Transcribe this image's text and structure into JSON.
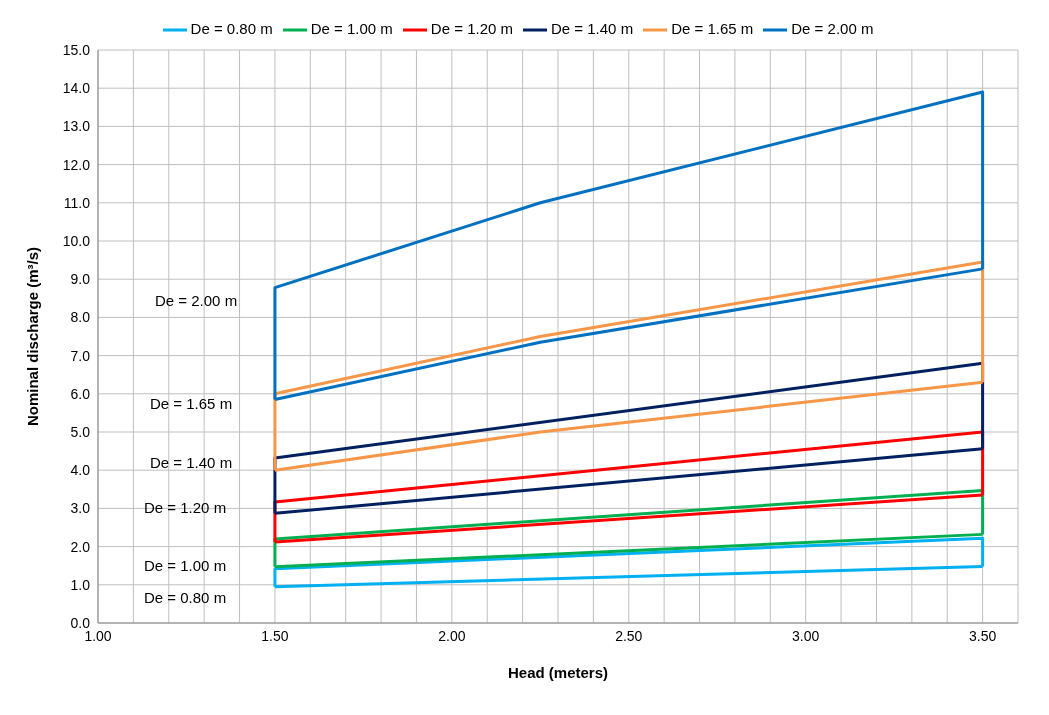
{
  "chart_data": {
    "type": "line",
    "xlabel": "Head (meters)",
    "ylabel": "Nominal discharge (m³/s)",
    "xlim": [
      1.0,
      3.6
    ],
    "xticks": [
      {
        "value": 1.0,
        "label": "1.00"
      },
      {
        "value": 1.1,
        "label": null
      },
      {
        "value": 1.2,
        "label": null
      },
      {
        "value": 1.3,
        "label": null
      },
      {
        "value": 1.4,
        "label": null
      },
      {
        "value": 1.5,
        "label": "1.50"
      },
      {
        "value": 1.6,
        "label": null
      },
      {
        "value": 1.7,
        "label": null
      },
      {
        "value": 1.8,
        "label": null
      },
      {
        "value": 1.9,
        "label": null
      },
      {
        "value": 2.0,
        "label": "2.00"
      },
      {
        "value": 2.1,
        "label": null
      },
      {
        "value": 2.2,
        "label": null
      },
      {
        "value": 2.3,
        "label": null
      },
      {
        "value": 2.4,
        "label": null
      },
      {
        "value": 2.5,
        "label": "2.50"
      },
      {
        "value": 2.6,
        "label": null
      },
      {
        "value": 2.7,
        "label": null
      },
      {
        "value": 2.8,
        "label": null
      },
      {
        "value": 2.9,
        "label": null
      },
      {
        "value": 3.0,
        "label": "3.00"
      },
      {
        "value": 3.1,
        "label": null
      },
      {
        "value": 3.2,
        "label": null
      },
      {
        "value": 3.3,
        "label": null
      },
      {
        "value": 3.4,
        "label": null
      },
      {
        "value": 3.5,
        "label": "3.50"
      },
      {
        "value": 3.6,
        "label": null
      }
    ],
    "ylim": [
      0,
      15
    ],
    "yticks": [
      {
        "value": 0,
        "label": "0.0"
      },
      {
        "value": 1,
        "label": "1.0"
      },
      {
        "value": 2,
        "label": "2.0"
      },
      {
        "value": 3,
        "label": "3.0"
      },
      {
        "value": 4,
        "label": "4.0"
      },
      {
        "value": 5,
        "label": "5.0"
      },
      {
        "value": 6,
        "label": "6.0"
      },
      {
        "value": 7,
        "label": "7.0"
      },
      {
        "value": 8,
        "label": "8.0"
      },
      {
        "value": 9,
        "label": "9.0"
      },
      {
        "value": 10,
        "label": "10.0"
      },
      {
        "value": 11,
        "label": "11.0"
      },
      {
        "value": 12,
        "label": "12.0"
      },
      {
        "value": 13,
        "label": "13.0"
      },
      {
        "value": 14,
        "label": "14.0"
      },
      {
        "value": 15,
        "label": "15.0"
      }
    ],
    "grid": true,
    "legend": "top",
    "marker": "none",
    "line_style": "solid",
    "series": [
      {
        "name": "De = 0.80 m",
        "color": "#00b0f0",
        "x": [
          1.5,
          3.5
        ],
        "values": [
          0.95,
          1.48
        ]
      },
      {
        "color": "#00b0f0",
        "x": [
          1.5,
          1.5,
          3.5,
          3.5
        ],
        "values": [
          0.95,
          1.42,
          2.22,
          1.48
        ]
      },
      {
        "name": "De = 1.00 m",
        "color": "#00b050",
        "x": [
          1.5,
          3.5
        ],
        "values": [
          1.47,
          2.32
        ]
      },
      {
        "color": "#00b050",
        "x": [
          1.5,
          1.5,
          3.5,
          3.5
        ],
        "values": [
          1.47,
          2.2,
          3.47,
          2.32
        ]
      },
      {
        "name": "De = 1.20 m",
        "color": "#ff0000",
        "x": [
          1.5,
          3.5
        ],
        "values": [
          2.12,
          3.35
        ]
      },
      {
        "color": "#ff0000",
        "x": [
          1.5,
          1.5,
          3.5,
          3.5
        ],
        "values": [
          2.12,
          3.17,
          5.0,
          3.35
        ]
      },
      {
        "name": "De = 1.40 m",
        "color": "#002060",
        "x": [
          1.5,
          3.5
        ],
        "values": [
          2.87,
          4.56
        ]
      },
      {
        "color": "#002060",
        "x": [
          1.5,
          1.5,
          3.5,
          3.5
        ],
        "values": [
          2.87,
          4.32,
          6.8,
          4.56
        ]
      },
      {
        "name": "De = 1.65 m",
        "color": "#f79646",
        "x": [
          1.5,
          2.25,
          3.5
        ],
        "values": [
          4.0,
          5.0,
          6.3
        ]
      },
      {
        "color": "#f79646",
        "x": [
          1.5,
          1.5,
          2.25,
          3.5,
          3.5
        ],
        "values": [
          4.0,
          6.0,
          7.5,
          9.45,
          6.3
        ]
      },
      {
        "name": "De = 2.00 m",
        "color": "#0070c0",
        "x": [
          1.5,
          2.25,
          3.5
        ],
        "values": [
          5.85,
          7.35,
          9.27
        ]
      },
      {
        "color": "#0070c0",
        "x": [
          1.5,
          1.5,
          2.25,
          3.5,
          3.5
        ],
        "values": [
          5.85,
          8.78,
          11.0,
          13.9,
          9.27
        ]
      }
    ],
    "annotations": [
      "De = 2.00 m",
      "De = 1.65 m",
      "De = 1.40 m",
      "De = 1.20 m",
      "De = 1.00 m",
      "De = 0.80 m"
    ]
  }
}
